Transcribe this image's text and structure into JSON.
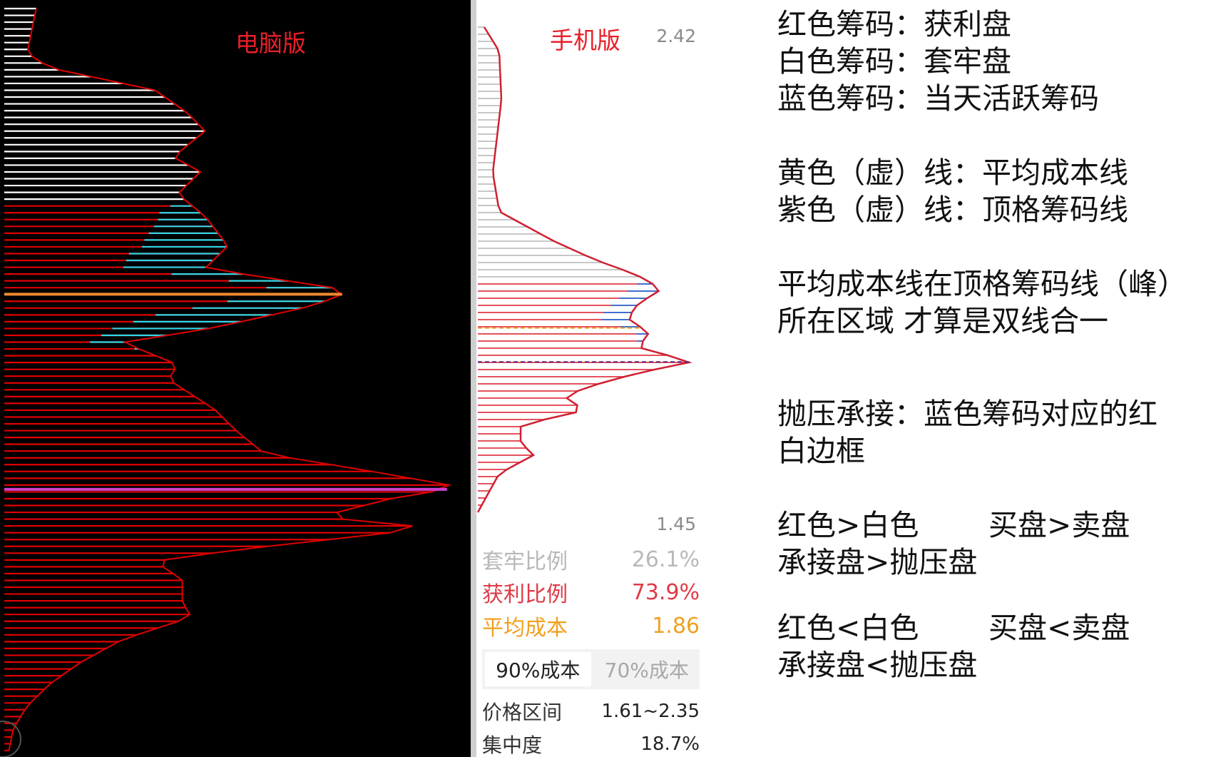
{
  "pc": {
    "title": "电脑版"
  },
  "mobile": {
    "title": "手机版",
    "price_top": "2.42",
    "price_bottom": "1.45",
    "stats": {
      "trapped_label": "套牢比例",
      "trapped_value": "26.1%",
      "profit_label": "获利比例",
      "profit_value": "73.9%",
      "avg_label": "平均成本",
      "avg_value": "1.86"
    },
    "tabs": [
      "90%成本",
      "70%成本"
    ],
    "range_label": "价格区间",
    "range_value": "1.61~2.35",
    "conc_label": "集中度",
    "conc_value": "18.7%"
  },
  "notes": {
    "line1": "红色筹码：获利盘",
    "line2": "白色筹码：套牢盘",
    "line3": "蓝色筹码：当天活跃筹码",
    "line4": "黄色（虚）线：平均成本线",
    "line5": "紫色（虚）线：顶格筹码线",
    "line6": "平均成本线在顶格筹码线（峰）",
    "line7": "所在区域 才算是双线合一",
    "line8": "抛压承接：蓝色筹码对应的红",
    "line9": "白边框",
    "line10a": "红色>白色",
    "line10b": "买盘>卖盘",
    "line11": "承接盘>抛压盘",
    "line12a": "红色<白色",
    "line12b": "买盘<卖盘",
    "line13": "承接盘<抛压盘"
  },
  "chart_data": [
    {
      "type": "chip-distribution",
      "title": "电脑版",
      "orientation": "horizontal-bars",
      "colors": {
        "trapped": "#ffffff",
        "profit": "#e00000",
        "active": "#31d6e6",
        "avg_line": "#f08a30",
        "peak_line": "#d040d0"
      },
      "profile": [
        [
          0,
          0.07
        ],
        [
          0.03,
          0.06
        ],
        [
          0.06,
          0.05
        ],
        [
          0.08,
          0.1
        ],
        [
          0.11,
          0.33
        ],
        [
          0.14,
          0.4
        ],
        [
          0.165,
          0.44
        ],
        [
          0.2,
          0.37
        ],
        [
          0.22,
          0.43
        ],
        [
          0.25,
          0.38
        ],
        [
          0.28,
          0.44
        ],
        [
          0.32,
          0.49
        ],
        [
          0.35,
          0.44
        ],
        [
          0.38,
          0.76
        ],
        [
          0.4,
          0.68
        ],
        [
          0.43,
          0.46
        ],
        [
          0.45,
          0.26
        ],
        [
          0.48,
          0.38
        ],
        [
          0.5,
          0.36
        ],
        [
          0.54,
          0.46
        ],
        [
          0.57,
          0.51
        ],
        [
          0.6,
          0.57
        ],
        [
          0.62,
          0.77
        ],
        [
          0.645,
          1.0
        ],
        [
          0.66,
          0.85
        ],
        [
          0.685,
          0.69
        ],
        [
          0.7,
          0.94
        ],
        [
          0.73,
          0.5
        ],
        [
          0.745,
          0.33
        ],
        [
          0.77,
          0.39
        ],
        [
          0.8,
          0.39
        ],
        [
          0.82,
          0.41
        ],
        [
          0.85,
          0.26
        ],
        [
          0.88,
          0.17
        ],
        [
          0.91,
          0.1
        ],
        [
          0.94,
          0.05
        ],
        [
          0.97,
          0.02
        ],
        [
          1.0,
          0.01
        ]
      ],
      "profit_start": 0.26,
      "active": [
        [
          0.26,
          0.0
        ],
        [
          0.27,
          0.08
        ],
        [
          0.29,
          0.12
        ],
        [
          0.31,
          0.17
        ],
        [
          0.33,
          0.2
        ],
        [
          0.35,
          0.18
        ],
        [
          0.37,
          0.12
        ],
        [
          0.39,
          0.2
        ],
        [
          0.41,
          0.26
        ],
        [
          0.43,
          0.22
        ],
        [
          0.46,
          0.0
        ]
      ],
      "avg_line_pos": 0.385,
      "peak_line_pos": 0.648
    },
    {
      "type": "chip-distribution",
      "title": "手机版",
      "orientation": "horizontal-bars",
      "y_range": [
        1.45,
        2.42
      ],
      "colors": {
        "trapped": "#bfbfbf",
        "profit": "#e03a46",
        "active": "#2a6fdb",
        "avg_line": "#f0a020",
        "peak_line": "#5a2a8a"
      },
      "profile": [
        [
          0,
          0.03
        ],
        [
          0.05,
          0.1
        ],
        [
          0.15,
          0.11
        ],
        [
          0.3,
          0.07
        ],
        [
          0.38,
          0.1
        ],
        [
          0.44,
          0.35
        ],
        [
          0.48,
          0.55
        ],
        [
          0.51,
          0.74
        ],
        [
          0.54,
          0.86
        ],
        [
          0.57,
          0.75
        ],
        [
          0.6,
          0.7
        ],
        [
          0.63,
          0.8
        ],
        [
          0.66,
          0.75
        ],
        [
          0.69,
          1.0
        ],
        [
          0.71,
          0.78
        ],
        [
          0.73,
          0.6
        ],
        [
          0.76,
          0.4
        ],
        [
          0.79,
          0.5
        ],
        [
          0.82,
          0.2
        ],
        [
          0.86,
          0.2
        ],
        [
          0.88,
          0.27
        ],
        [
          0.92,
          0.1
        ],
        [
          0.96,
          0.05
        ],
        [
          1.0,
          0.0
        ]
      ],
      "profit_start": 0.52,
      "active": [
        [
          0.52,
          0.0
        ],
        [
          0.54,
          0.15
        ],
        [
          0.57,
          0.12
        ],
        [
          0.6,
          0.14
        ],
        [
          0.63,
          0.06
        ],
        [
          0.66,
          0.0
        ]
      ],
      "avg_line_pos": 0.62,
      "peak_line_pos": 0.69
    }
  ]
}
